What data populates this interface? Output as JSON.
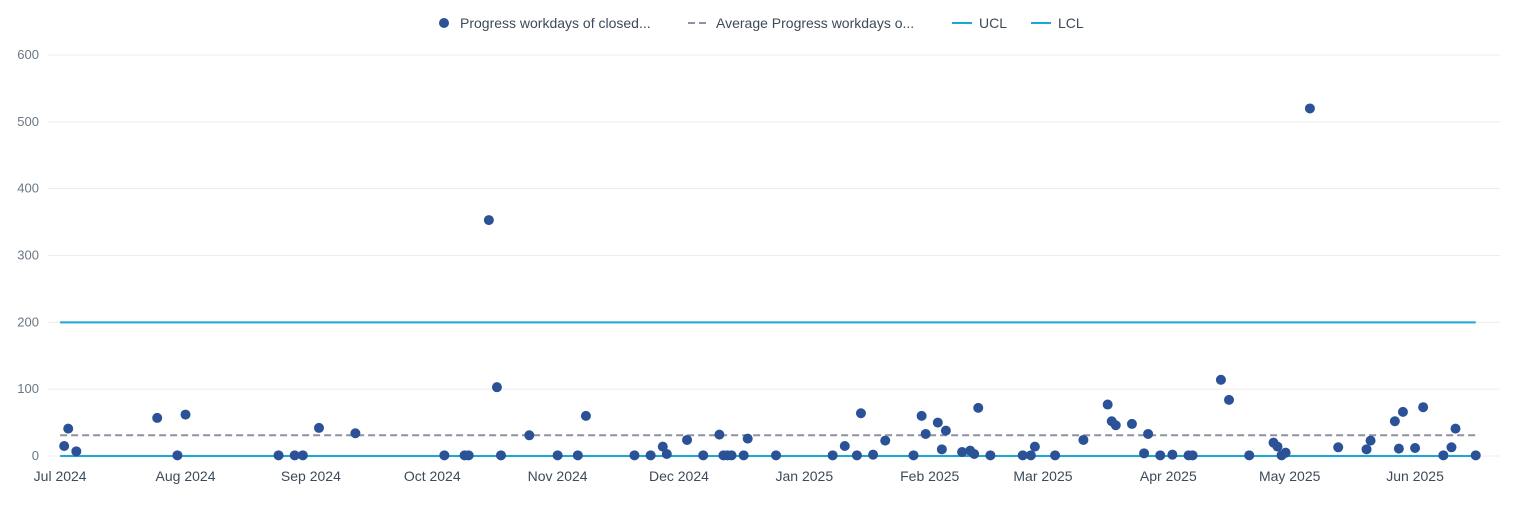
{
  "colors": {
    "point": "#2b5196",
    "average": "#8e92a0",
    "ucl": "#1aa8d4",
    "lcl": "#1aa8d4",
    "grid": "#ececf0",
    "axis_text": "#6b7785"
  },
  "legend": {
    "items": [
      {
        "label": "Progress workdays of closed...",
        "marker": "dot"
      },
      {
        "label": "Average Progress workdays o...",
        "marker": "dash"
      },
      {
        "label": "UCL",
        "marker": "line"
      },
      {
        "label": "LCL",
        "marker": "line"
      }
    ]
  },
  "chart_data": {
    "type": "scatter",
    "title": "",
    "xlabel": "",
    "ylabel": "",
    "xlim": [
      "2024-06-28",
      "2025-06-22"
    ],
    "ylim": [
      0,
      600
    ],
    "y_ticks": [
      "0",
      "100",
      "200",
      "300",
      "400",
      "500",
      "600"
    ],
    "x_ticks": [
      {
        "label": "Jul 2024",
        "date": "2024-07-01"
      },
      {
        "label": "Aug 2024",
        "date": "2024-08-01"
      },
      {
        "label": "Sep 2024",
        "date": "2024-09-01"
      },
      {
        "label": "Oct 2024",
        "date": "2024-10-01"
      },
      {
        "label": "Nov 2024",
        "date": "2024-11-01"
      },
      {
        "label": "Dec 2024",
        "date": "2024-12-01"
      },
      {
        "label": "Jan 2025",
        "date": "2025-01-01"
      },
      {
        "label": "Feb 2025",
        "date": "2025-02-01"
      },
      {
        "label": "Mar 2025",
        "date": "2025-03-01"
      },
      {
        "label": "Apr 2025",
        "date": "2025-04-01"
      },
      {
        "label": "May 2025",
        "date": "2025-05-01"
      },
      {
        "label": "Jun 2025",
        "date": "2025-06-01"
      }
    ],
    "grid": true,
    "legend_position": "top-center",
    "series": [
      {
        "name": "Progress workdays of closed...",
        "type": "scatter",
        "points": [
          {
            "x": "2024-07-02",
            "y": 15
          },
          {
            "x": "2024-07-03",
            "y": 41
          },
          {
            "x": "2024-07-05",
            "y": 7
          },
          {
            "x": "2024-07-25",
            "y": 57
          },
          {
            "x": "2024-07-30",
            "y": 1
          },
          {
            "x": "2024-08-01",
            "y": 62
          },
          {
            "x": "2024-08-24",
            "y": 1
          },
          {
            "x": "2024-08-28",
            "y": 1
          },
          {
            "x": "2024-08-30",
            "y": 1
          },
          {
            "x": "2024-09-03",
            "y": 42
          },
          {
            "x": "2024-09-12",
            "y": 34
          },
          {
            "x": "2024-10-04",
            "y": 1
          },
          {
            "x": "2024-10-09",
            "y": 1
          },
          {
            "x": "2024-10-10",
            "y": 1
          },
          {
            "x": "2024-10-15",
            "y": 353
          },
          {
            "x": "2024-10-17",
            "y": 103
          },
          {
            "x": "2024-10-18",
            "y": 1
          },
          {
            "x": "2024-10-25",
            "y": 31
          },
          {
            "x": "2024-11-01",
            "y": 1
          },
          {
            "x": "2024-11-06",
            "y": 1
          },
          {
            "x": "2024-11-08",
            "y": 60
          },
          {
            "x": "2024-11-20",
            "y": 1
          },
          {
            "x": "2024-11-24",
            "y": 1
          },
          {
            "x": "2024-11-27",
            "y": 14
          },
          {
            "x": "2024-11-28",
            "y": 3
          },
          {
            "x": "2024-12-03",
            "y": 24
          },
          {
            "x": "2024-12-07",
            "y": 1
          },
          {
            "x": "2024-12-11",
            "y": 32
          },
          {
            "x": "2024-12-12",
            "y": 1
          },
          {
            "x": "2024-12-13",
            "y": 1
          },
          {
            "x": "2024-12-14",
            "y": 1
          },
          {
            "x": "2024-12-17",
            "y": 1
          },
          {
            "x": "2024-12-18",
            "y": 26
          },
          {
            "x": "2024-12-25",
            "y": 1
          },
          {
            "x": "2025-01-08",
            "y": 1
          },
          {
            "x": "2025-01-11",
            "y": 15
          },
          {
            "x": "2025-01-14",
            "y": 1
          },
          {
            "x": "2025-01-15",
            "y": 64
          },
          {
            "x": "2025-01-18",
            "y": 2
          },
          {
            "x": "2025-01-21",
            "y": 23
          },
          {
            "x": "2025-01-28",
            "y": 1
          },
          {
            "x": "2025-01-30",
            "y": 60
          },
          {
            "x": "2025-01-31",
            "y": 33
          },
          {
            "x": "2025-02-03",
            "y": 50
          },
          {
            "x": "2025-02-04",
            "y": 10
          },
          {
            "x": "2025-02-05",
            "y": 38
          },
          {
            "x": "2025-02-09",
            "y": 6
          },
          {
            "x": "2025-02-11",
            "y": 8
          },
          {
            "x": "2025-02-12",
            "y": 3
          },
          {
            "x": "2025-02-13",
            "y": 72
          },
          {
            "x": "2025-02-16",
            "y": 1
          },
          {
            "x": "2025-02-24",
            "y": 1
          },
          {
            "x": "2025-02-26",
            "y": 1
          },
          {
            "x": "2025-02-27",
            "y": 14
          },
          {
            "x": "2025-03-04",
            "y": 1
          },
          {
            "x": "2025-03-11",
            "y": 24
          },
          {
            "x": "2025-03-17",
            "y": 77
          },
          {
            "x": "2025-03-18",
            "y": 52
          },
          {
            "x": "2025-03-19",
            "y": 46
          },
          {
            "x": "2025-03-23",
            "y": 48
          },
          {
            "x": "2025-03-26",
            "y": 4
          },
          {
            "x": "2025-03-27",
            "y": 33
          },
          {
            "x": "2025-03-30",
            "y": 1
          },
          {
            "x": "2025-04-02",
            "y": 2
          },
          {
            "x": "2025-04-06",
            "y": 1
          },
          {
            "x": "2025-04-07",
            "y": 1
          },
          {
            "x": "2025-04-14",
            "y": 114
          },
          {
            "x": "2025-04-16",
            "y": 84
          },
          {
            "x": "2025-04-21",
            "y": 1
          },
          {
            "x": "2025-04-27",
            "y": 20
          },
          {
            "x": "2025-04-28",
            "y": 14
          },
          {
            "x": "2025-04-29",
            "y": 1
          },
          {
            "x": "2025-04-30",
            "y": 5
          },
          {
            "x": "2025-05-06",
            "y": 520
          },
          {
            "x": "2025-05-13",
            "y": 13
          },
          {
            "x": "2025-05-20",
            "y": 10
          },
          {
            "x": "2025-05-21",
            "y": 23
          },
          {
            "x": "2025-05-27",
            "y": 52
          },
          {
            "x": "2025-05-28",
            "y": 11
          },
          {
            "x": "2025-05-29",
            "y": 66
          },
          {
            "x": "2025-06-01",
            "y": 12
          },
          {
            "x": "2025-06-03",
            "y": 73
          },
          {
            "x": "2025-06-08",
            "y": 1
          },
          {
            "x": "2025-06-10",
            "y": 13
          },
          {
            "x": "2025-06-11",
            "y": 41
          },
          {
            "x": "2025-06-16",
            "y": 1
          }
        ]
      },
      {
        "name": "Average Progress workdays o...",
        "type": "line",
        "style": "dashed",
        "x": [
          "2024-07-01",
          "2025-06-16"
        ],
        "y": [
          31,
          31
        ]
      },
      {
        "name": "UCL",
        "type": "line",
        "style": "solid",
        "x": [
          "2024-07-01",
          "2025-06-16"
        ],
        "y": [
          200,
          200
        ]
      },
      {
        "name": "LCL",
        "type": "line",
        "style": "solid",
        "x": [
          "2024-07-01",
          "2025-06-16"
        ],
        "y": [
          0,
          0
        ]
      }
    ]
  }
}
